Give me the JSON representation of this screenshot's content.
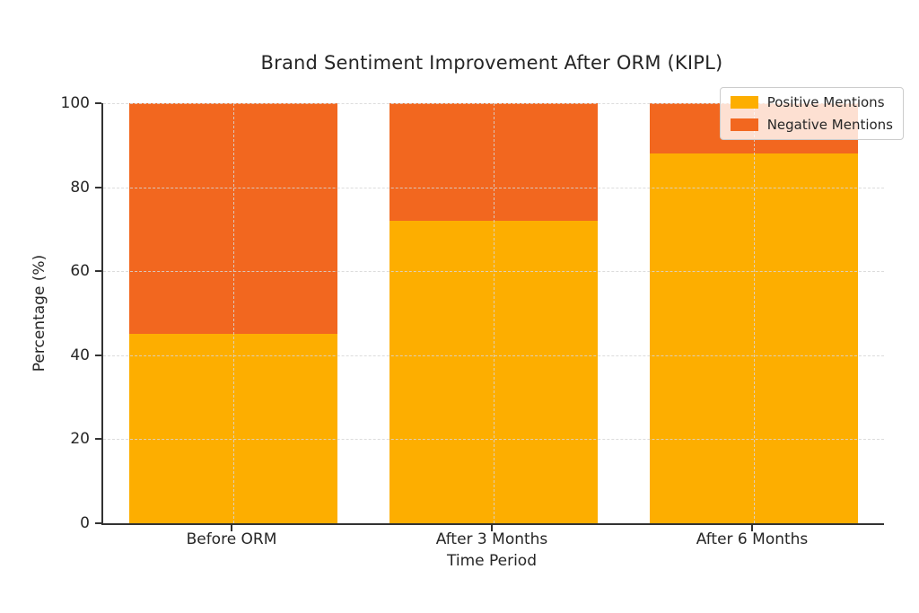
{
  "chart_data": {
    "type": "bar",
    "stacked": true,
    "title": "Brand Sentiment Improvement After ORM (KIPL)",
    "xlabel": "Time Period",
    "ylabel": "Percentage (%)",
    "categories": [
      "Before ORM",
      "After 3 Months",
      "After 6 Months"
    ],
    "series": [
      {
        "name": "Positive Mentions",
        "values": [
          45,
          72,
          88
        ],
        "color": "#FDAE00"
      },
      {
        "name": "Negative Mentions",
        "values": [
          55,
          28,
          12
        ],
        "color": "#F2671F"
      }
    ],
    "ylim": [
      0,
      100
    ],
    "yticks": [
      0,
      20,
      40,
      60,
      80,
      100
    ],
    "bar_width_fraction": 0.8,
    "grid": "dashed light-gray, horizontal and vertical, drawn above bars",
    "legend_position": "upper right",
    "legend_background": "rgba(255,255,255,0.8)",
    "axis_color": "#333333",
    "text_color": "#262626"
  }
}
